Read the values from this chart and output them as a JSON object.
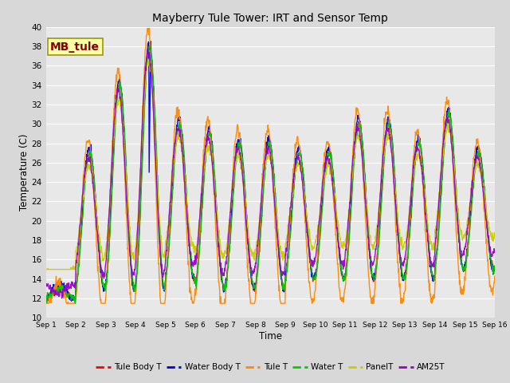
{
  "title": "Mayberry Tule Tower: IRT and Sensor Temp",
  "xlabel": "Time",
  "ylabel": "Temperature (C)",
  "ylim": [
    10,
    40
  ],
  "n_days": 15,
  "fig_bg": "#d8d8d8",
  "ax_bg": "#e8e8e8",
  "series_order": [
    "Tule Body T",
    "Water Body T",
    "Tule T",
    "Water T",
    "PanelT",
    "AM25T"
  ],
  "series": {
    "Tule Body T": {
      "color": "#ff0000",
      "lw": 1.0
    },
    "Water Body T": {
      "color": "#0000dd",
      "lw": 1.0
    },
    "Tule T": {
      "color": "#ff8800",
      "lw": 1.0
    },
    "Water T": {
      "color": "#00cc00",
      "lw": 1.0
    },
    "PanelT": {
      "color": "#cccc00",
      "lw": 1.0
    },
    "AM25T": {
      "color": "#9900cc",
      "lw": 1.0
    }
  },
  "label_box": {
    "text": "MB_tule",
    "facecolor": "#ffffaa",
    "edgecolor": "#999900",
    "fontsize": 10,
    "fontweight": "bold",
    "textcolor": "#880000"
  },
  "xtick_labels": [
    "Sep 1",
    "Sep 2",
    "Sep 3",
    "Sep 4",
    "Sep 5",
    "Sep 6",
    "Sep 7",
    "Sep 8",
    "Sep 9",
    "Sep 10",
    "Sep 11",
    "Sep 12",
    "Sep 13",
    "Sep 14",
    "Sep 15",
    "Sep 16"
  ],
  "ytick_vals": [
    10,
    12,
    14,
    16,
    18,
    20,
    22,
    24,
    26,
    28,
    30,
    32,
    34,
    36,
    38,
    40
  ],
  "day_maxima": [
    13,
    27,
    34,
    38,
    30,
    29,
    28,
    28,
    27,
    27,
    30,
    30,
    28,
    31,
    27
  ],
  "day_minima": [
    12,
    13,
    13,
    13,
    14,
    13,
    13,
    13,
    14,
    14,
    14,
    14,
    14,
    15,
    15
  ]
}
